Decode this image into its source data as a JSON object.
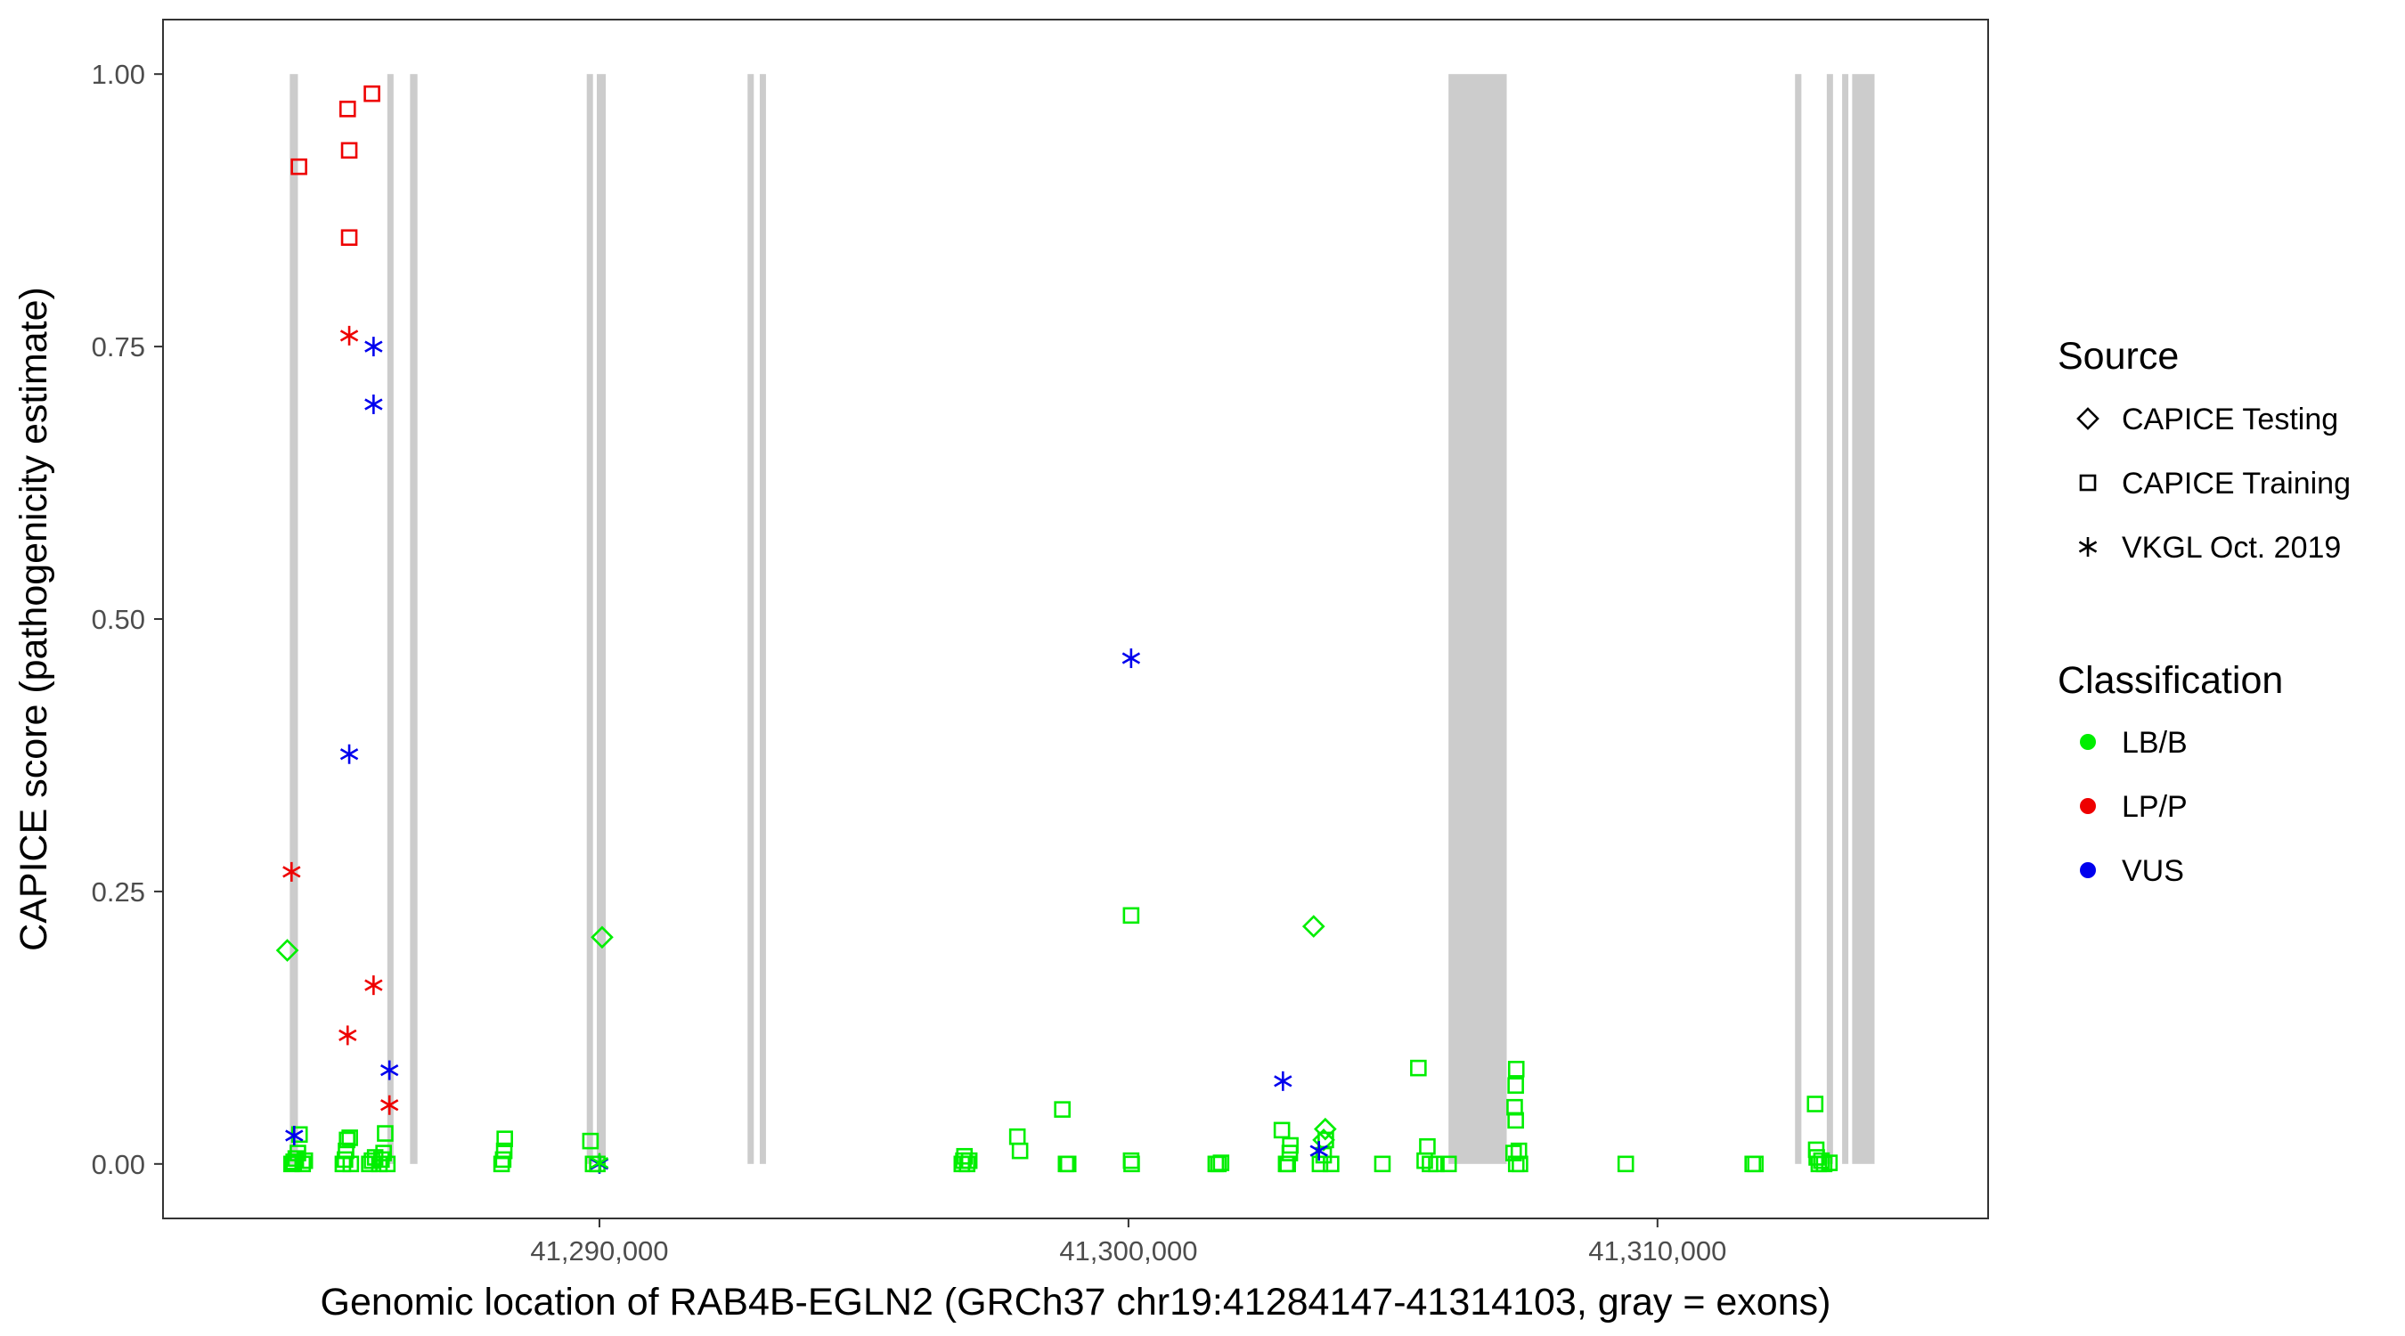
{
  "chart_data": {
    "type": "scatter",
    "xlabel": "Genomic location of RAB4B-EGLN2 (GRCh37 chr19:41284147-41314103, gray = exons)",
    "ylabel": "CAPICE score (pathogenicity estimate)",
    "xlim": [
      41281750,
      41316250
    ],
    "ylim": [
      -0.05,
      1.05
    ],
    "x_ticks": [
      41290000,
      41300000,
      41310000
    ],
    "x_tick_labels": [
      "41,290,000",
      "41,300,000",
      "41,310,000"
    ],
    "y_ticks": [
      0,
      0.25,
      0.5,
      0.75,
      1.0
    ],
    "y_tick_labels": [
      "0.00",
      "0.25",
      "0.50",
      "0.75",
      "1.00"
    ],
    "grid": false,
    "legend_position": "right",
    "exons": [
      [
        41284147,
        41284300
      ],
      [
        41285990,
        41286060
      ],
      [
        41286420,
        41286560
      ],
      [
        41289760,
        41289830
      ],
      [
        41289950,
        41290120
      ],
      [
        41292800,
        41292910
      ],
      [
        41293030,
        41293140
      ],
      [
        41306050,
        41307150
      ],
      [
        41312600,
        41312720
      ],
      [
        41313200,
        41313310
      ],
      [
        41313490,
        41313560
      ],
      [
        41313680,
        41314103
      ]
    ],
    "legends": [
      {
        "title": "Source",
        "entries": [
          {
            "label": "CAPICE Testing",
            "shape": "diamond"
          },
          {
            "label": "CAPICE Training",
            "shape": "square"
          },
          {
            "label": "VKGL Oct. 2019",
            "shape": "asterisk"
          }
        ]
      },
      {
        "title": "Classification",
        "entries": [
          {
            "label": "LB/B",
            "color": "#00EE00"
          },
          {
            "label": "LP/P",
            "color": "#EE0000"
          },
          {
            "label": "VUS",
            "color": "#0000EE"
          }
        ]
      }
    ],
    "series": [
      {
        "source": "CAPICE Training",
        "shape": "square",
        "classification": "LP/P",
        "color": "#EE0000",
        "points": [
          [
            41284320,
            0.915
          ],
          [
            41285240,
            0.968
          ],
          [
            41285270,
            0.93
          ],
          [
            41285270,
            0.85
          ],
          [
            41285700,
            0.982
          ]
        ]
      },
      {
        "source": "CAPICE Training",
        "shape": "square",
        "classification": "LB/B",
        "color": "#00EE00",
        "points": [
          [
            41284180,
            0.0
          ],
          [
            41284220,
            0.002
          ],
          [
            41284260,
            0.005
          ],
          [
            41284300,
            0.01
          ],
          [
            41284330,
            0.027
          ],
          [
            41284390,
            0.0
          ],
          [
            41284430,
            0.003
          ],
          [
            41285150,
            0.0
          ],
          [
            41285190,
            0.004
          ],
          [
            41285210,
            0.012
          ],
          [
            41285230,
            0.022
          ],
          [
            41285280,
            0.024
          ],
          [
            41285300,
            0.0
          ],
          [
            41285650,
            0.0
          ],
          [
            41285700,
            0.003
          ],
          [
            41285760,
            0.006
          ],
          [
            41285840,
            0.0
          ],
          [
            41285880,
            0.004
          ],
          [
            41285920,
            0.01
          ],
          [
            41285950,
            0.028
          ],
          [
            41285990,
            0.0
          ],
          [
            41288150,
            0.0
          ],
          [
            41288180,
            0.004
          ],
          [
            41288200,
            0.012
          ],
          [
            41288210,
            0.023
          ],
          [
            41289830,
            0.021
          ],
          [
            41289880,
            0.0
          ],
          [
            41289960,
            0.0
          ],
          [
            41296850,
            0.0
          ],
          [
            41296880,
            0.003
          ],
          [
            41296900,
            0.007
          ],
          [
            41296950,
            0.0
          ],
          [
            41296990,
            0.003
          ],
          [
            41297900,
            0.025
          ],
          [
            41297950,
            0.012
          ],
          [
            41298750,
            0.05
          ],
          [
            41298820,
            0.0
          ],
          [
            41298860,
            0.0
          ],
          [
            41300050,
            0.228
          ],
          [
            41300050,
            0.003
          ],
          [
            41300060,
            0.0
          ],
          [
            41301650,
            0.0
          ],
          [
            41301700,
            0.0
          ],
          [
            41301750,
            0.001
          ],
          [
            41302900,
            0.031
          ],
          [
            41302980,
            0.0
          ],
          [
            41303010,
            0.0
          ],
          [
            41303050,
            0.01
          ],
          [
            41303060,
            0.017
          ],
          [
            41303620,
            0.0
          ],
          [
            41303690,
            0.008
          ],
          [
            41303730,
            0.022
          ],
          [
            41303830,
            0.0
          ],
          [
            41304800,
            0.0
          ],
          [
            41305480,
            0.088
          ],
          [
            41305600,
            0.003
          ],
          [
            41305650,
            0.016
          ],
          [
            41305700,
            0.0
          ],
          [
            41305820,
            0.0
          ],
          [
            41306050,
            0.0
          ],
          [
            41307330,
            0.087
          ],
          [
            41307320,
            0.072
          ],
          [
            41307300,
            0.052
          ],
          [
            41307320,
            0.04
          ],
          [
            41307280,
            0.01
          ],
          [
            41307380,
            0.012
          ],
          [
            41307330,
            0.0
          ],
          [
            41307400,
            0.0
          ],
          [
            41309400,
            0.0
          ],
          [
            41311800,
            0.0
          ],
          [
            41311850,
            0.0
          ],
          [
            41312980,
            0.055
          ],
          [
            41313000,
            0.013
          ],
          [
            41313010,
            0.006
          ],
          [
            41313050,
            0.0
          ],
          [
            41313100,
            0.003
          ],
          [
            41313150,
            0.0
          ],
          [
            41313250,
            0.001
          ]
        ]
      },
      {
        "source": "CAPICE Testing",
        "shape": "diamond",
        "classification": "LB/B",
        "color": "#00EE00",
        "points": [
          [
            41284100,
            0.196
          ],
          [
            41290050,
            0.208
          ],
          [
            41303500,
            0.218
          ],
          [
            41303720,
            0.032
          ],
          [
            41303690,
            0.022
          ]
        ]
      },
      {
        "source": "VKGL Oct. 2019",
        "shape": "asterisk",
        "classification": "LP/P",
        "color": "#EE0000",
        "points": [
          [
            41284180,
            0.268
          ],
          [
            41285270,
            0.76
          ],
          [
            41285730,
            0.164
          ],
          [
            41285240,
            0.118
          ],
          [
            41286030,
            0.054
          ]
        ]
      },
      {
        "source": "VKGL Oct. 2019",
        "shape": "asterisk",
        "classification": "VUS",
        "color": "#0000EE",
        "points": [
          [
            41285730,
            0.75
          ],
          [
            41285730,
            0.697
          ],
          [
            41285270,
            0.376
          ],
          [
            41286030,
            0.086
          ],
          [
            41284230,
            0.026
          ],
          [
            41290000,
            0.0
          ],
          [
            41300050,
            0.464
          ],
          [
            41302920,
            0.076
          ],
          [
            41303600,
            0.012
          ]
        ]
      },
      {
        "source": "VKGL Oct. 2019",
        "shape": "asterisk",
        "classification": "LB/B",
        "color": "#00EE00",
        "points": [
          [
            41290000,
            0.001
          ]
        ]
      }
    ]
  }
}
